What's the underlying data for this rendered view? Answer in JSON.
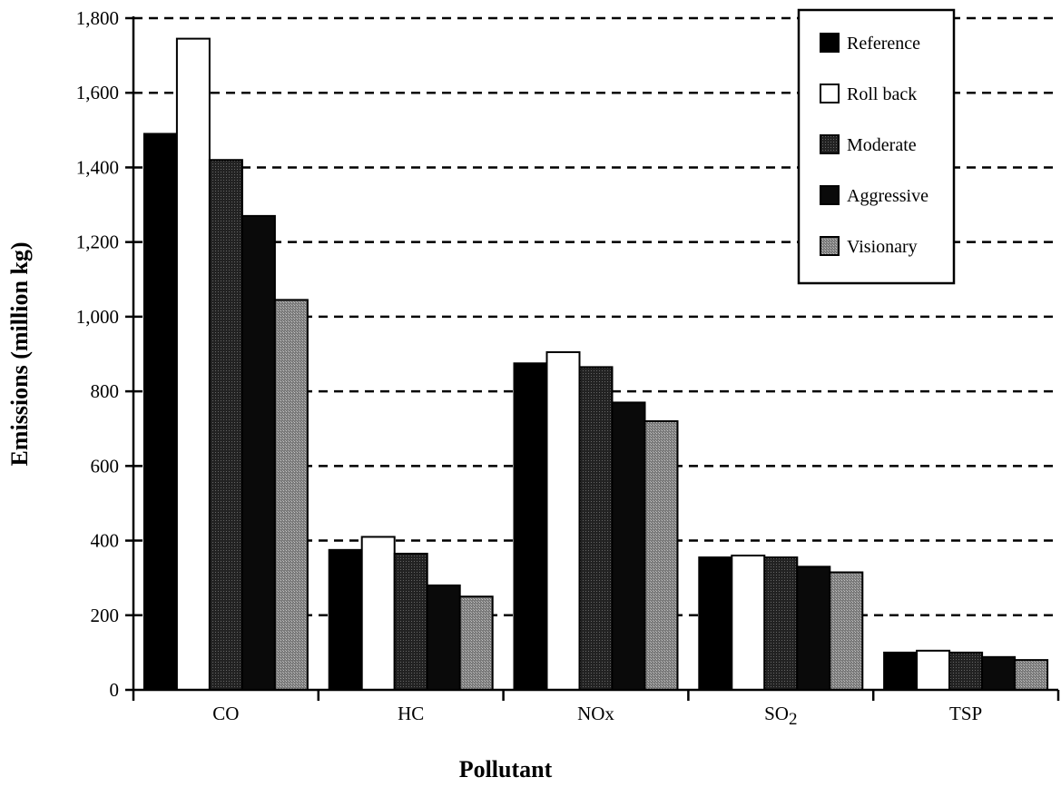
{
  "colors": {
    "Reference": "#000000",
    "Roll back": "#ffffff",
    "Moderate": "#3a3a3a",
    "Aggressive": "#0a0a0a",
    "Visionary": "#8c8c8c"
  },
  "chart_data": {
    "type": "bar",
    "title": "",
    "xlabel": "Pollutant",
    "ylabel": "Emissions (million kg)",
    "ylim": [
      0,
      1800
    ],
    "yticks": [
      0,
      200,
      400,
      600,
      800,
      1000,
      1200,
      1400,
      1600,
      1800
    ],
    "ytick_labels": [
      "0",
      "200",
      "400",
      "600",
      "800",
      "1,000",
      "1,200",
      "1,400",
      "1,600",
      "1,800"
    ],
    "grid": "horizontal-dashed",
    "legend_position": "top-right",
    "categories": [
      "CO",
      "HC",
      "NOx",
      "SO2",
      "TSP"
    ],
    "series": [
      {
        "name": "Reference",
        "values": [
          1490,
          375,
          875,
          355,
          100
        ]
      },
      {
        "name": "Roll back",
        "values": [
          1745,
          410,
          905,
          360,
          105
        ]
      },
      {
        "name": "Moderate",
        "values": [
          1420,
          365,
          865,
          355,
          100
        ]
      },
      {
        "name": "Aggressive",
        "values": [
          1270,
          280,
          770,
          330,
          88
        ]
      },
      {
        "name": "Visionary",
        "values": [
          1045,
          250,
          720,
          315,
          80
        ]
      }
    ]
  }
}
